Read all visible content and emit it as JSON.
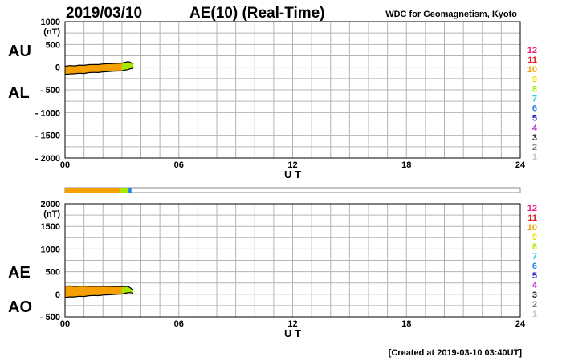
{
  "header": {
    "date": "2019/03/10",
    "title": "AE(10) (Real-Time)",
    "source": "WDC for Geomagnetism, Kyoto"
  },
  "footer": {
    "created": "[Created at 2019-03-10 03:40UT]"
  },
  "colors": {
    "stations": {
      "12": "#e8207e",
      "11": "#e02020",
      "10": "#f5a000",
      "9": "#f0e000",
      "8": "#a8e800",
      "7": "#30d0d8",
      "6": "#2080f0",
      "5": "#2020c8",
      "4": "#c020d8",
      "3": "#202020",
      "2": "#808080",
      "1": "#c8c8c8"
    },
    "fill_main": "#f5a000",
    "fill_recent": "#a8e800",
    "grid": "#b4b4b4"
  },
  "chart_data": [
    {
      "type": "area",
      "panel": "AU/AL",
      "ylabels": [
        "AU",
        "AL"
      ],
      "unit": "(nT)",
      "ylim": [
        -2000,
        1000
      ],
      "yticks": [
        1000,
        500,
        0,
        -500,
        -1000,
        -1500,
        -2000
      ],
      "ytick_labels": [
        "1000",
        "500",
        "0",
        "- 500",
        "- 1000",
        "- 1500",
        "- 2000"
      ],
      "xlim": [
        0,
        24
      ],
      "xticks": [
        0,
        6,
        12,
        18,
        24
      ],
      "xtick_labels": [
        "00",
        "06",
        "12",
        "18",
        "24"
      ],
      "xlabel": "U T",
      "grid": true,
      "legend": [
        "12",
        "11",
        "10",
        "9",
        "8",
        "7",
        "6",
        "5",
        "4",
        "3",
        "2",
        "1"
      ],
      "legend_position": "right",
      "x": [
        0.0,
        0.25,
        0.5,
        0.75,
        1.0,
        1.25,
        1.5,
        1.75,
        2.0,
        2.25,
        2.5,
        2.75,
        3.0,
        3.1,
        3.2,
        3.3,
        3.4,
        3.5,
        3.6
      ],
      "series": [
        {
          "name": "AU",
          "values": [
            20,
            35,
            28,
            45,
            40,
            55,
            60,
            58,
            70,
            75,
            80,
            85,
            90,
            100,
            110,
            120,
            115,
            95,
            80
          ]
        },
        {
          "name": "AL",
          "values": [
            -160,
            -150,
            -145,
            -135,
            -140,
            -120,
            -115,
            -118,
            -105,
            -100,
            -90,
            -85,
            -80,
            -70,
            -60,
            -55,
            -40,
            -30,
            -25
          ]
        }
      ]
    },
    {
      "type": "area",
      "panel": "AE/AO",
      "ylabels": [
        "AE",
        "AO"
      ],
      "unit": "(nT)",
      "ylim": [
        -500,
        2000
      ],
      "yticks": [
        2000,
        1500,
        1000,
        500,
        0,
        -500
      ],
      "ytick_labels": [
        "2000",
        "1500",
        "1000",
        "500",
        "0",
        "- 500"
      ],
      "xlim": [
        0,
        24
      ],
      "xticks": [
        0,
        6,
        12,
        18,
        24
      ],
      "xtick_labels": [
        "00",
        "06",
        "12",
        "18",
        "24"
      ],
      "xlabel": "U T",
      "grid": true,
      "legend": [
        "12",
        "11",
        "10",
        "9",
        "8",
        "7",
        "6",
        "5",
        "4",
        "3",
        "2",
        "1"
      ],
      "legend_position": "right",
      "x": [
        0.0,
        0.25,
        0.5,
        0.75,
        1.0,
        1.25,
        1.5,
        1.75,
        2.0,
        2.25,
        2.5,
        2.75,
        3.0,
        3.1,
        3.2,
        3.3,
        3.4,
        3.5,
        3.6
      ],
      "series": [
        {
          "name": "AE",
          "values": [
            180,
            185,
            173,
            180,
            180,
            175,
            175,
            176,
            175,
            175,
            170,
            170,
            170,
            170,
            170,
            175,
            155,
            125,
            105
          ]
        },
        {
          "name": "AO",
          "values": [
            -70,
            -58,
            -58,
            -45,
            -50,
            -32,
            -27,
            -30,
            -17,
            -12,
            -5,
            0,
            5,
            15,
            25,
            32,
            38,
            32,
            27
          ]
        }
      ]
    }
  ],
  "station_bar": {
    "segments": [
      {
        "from": 0.0,
        "to": 2.9,
        "count": "10"
      },
      {
        "from": 2.9,
        "to": 3.35,
        "count": "8"
      },
      {
        "from": 3.35,
        "to": 3.5,
        "count": "6"
      }
    ]
  }
}
